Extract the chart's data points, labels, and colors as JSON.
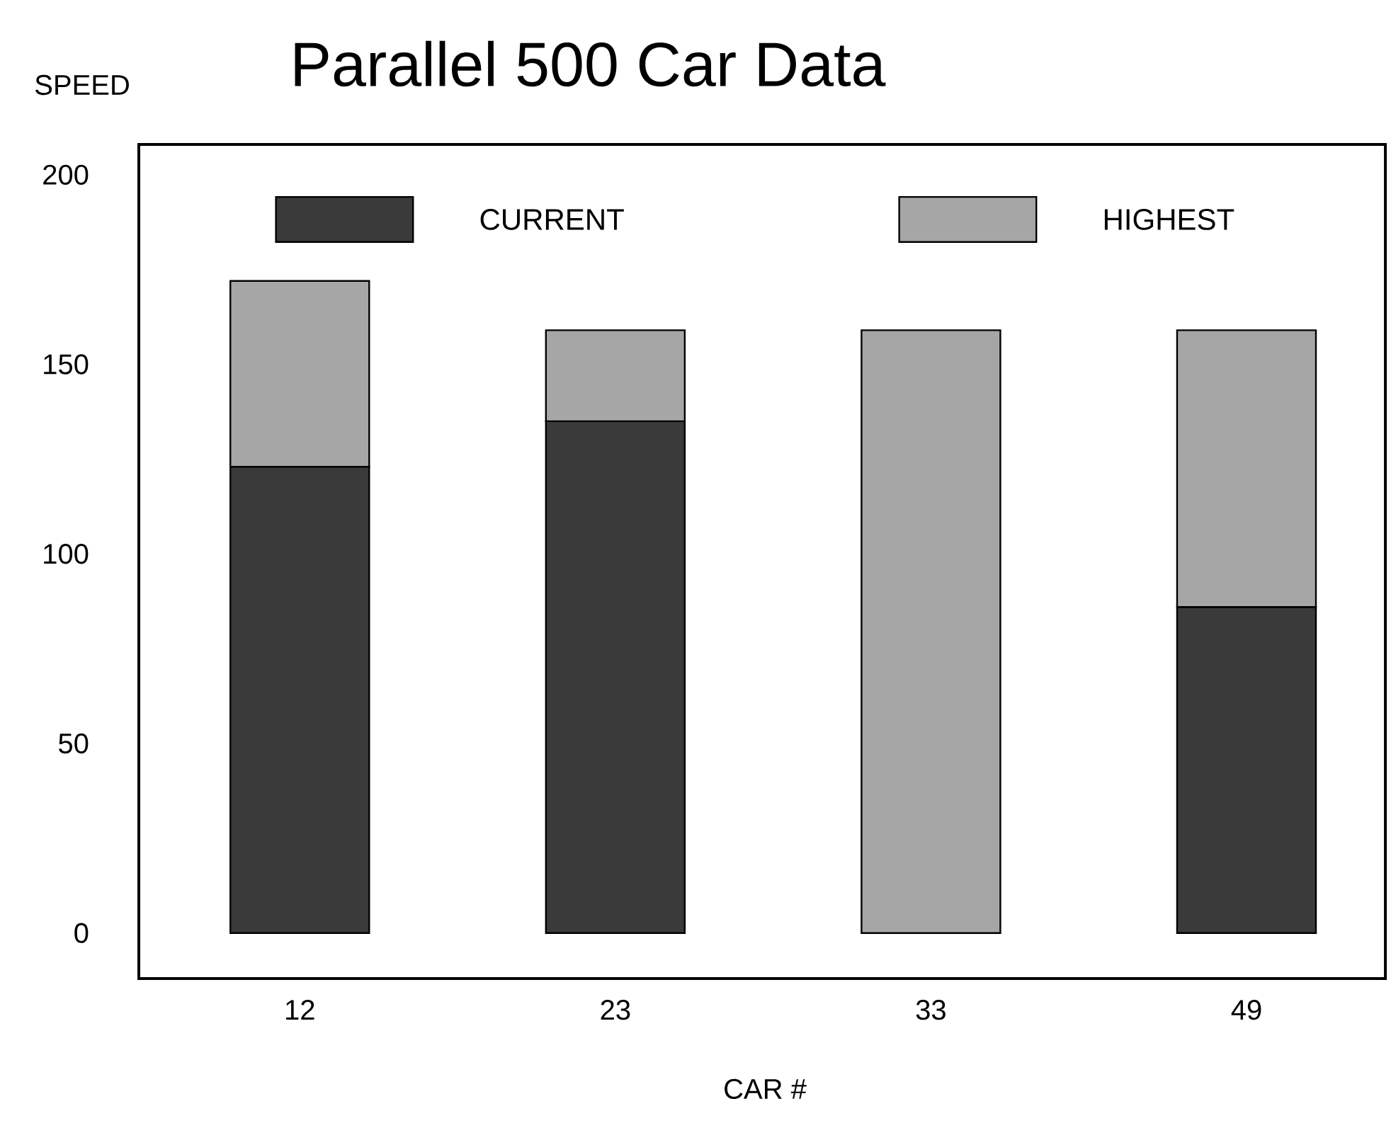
{
  "chart_data": {
    "type": "bar",
    "stacked": true,
    "title": "Parallel 500   Car Data",
    "xlabel": "CAR #",
    "ylabel": "SPEED",
    "categories": [
      "12",
      "23",
      "33",
      "49"
    ],
    "series": [
      {
        "name": "CURRENT",
        "color": "#3a3a3a",
        "values": [
          123,
          135,
          0,
          86
        ]
      },
      {
        "name": "HIGHEST",
        "color": "#a6a6a6",
        "values": [
          49,
          24,
          159,
          73
        ]
      }
    ],
    "ylim": [
      -12,
      208
    ],
    "yticks": [
      0,
      50,
      100,
      150,
      200
    ],
    "legend": "top"
  }
}
